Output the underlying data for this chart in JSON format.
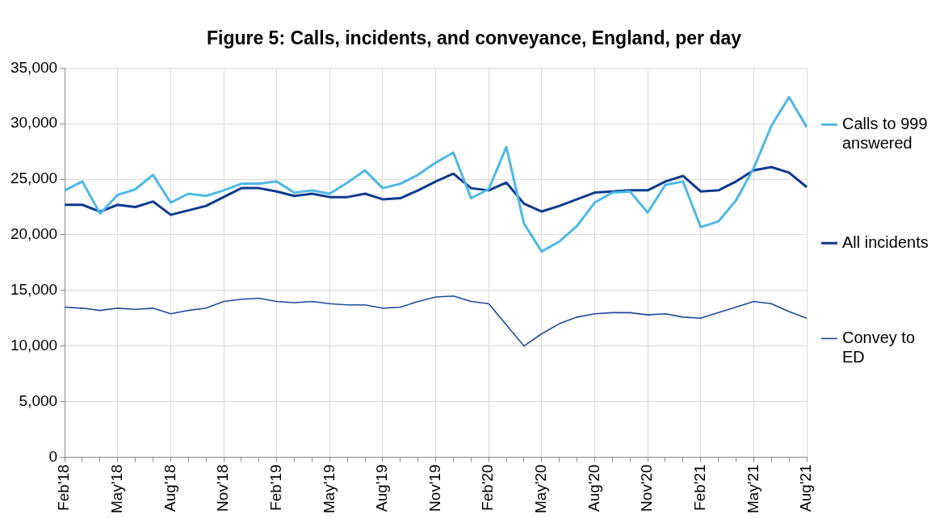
{
  "chart_data": {
    "type": "line",
    "title": "Figure 5: Calls, incidents, and conveyance, England, per day",
    "categories": [
      "Feb'18",
      null,
      null,
      "May'18",
      null,
      null,
      "Aug'18",
      null,
      null,
      "Nov'18",
      null,
      null,
      "Feb'19",
      null,
      null,
      "May'19",
      null,
      null,
      "Aug'19",
      null,
      null,
      "Nov'19",
      null,
      null,
      "Feb'20",
      null,
      null,
      "May'20",
      null,
      null,
      "Aug'20",
      null,
      null,
      "Nov'20",
      null,
      null,
      "Feb'21",
      null,
      null,
      "May'21",
      null,
      null,
      "Aug'21"
    ],
    "series": [
      {
        "name": "Calls to 999 answered",
        "color": "#4db8e8",
        "values": [
          24000,
          24800,
          21900,
          23600,
          24100,
          25400,
          22900,
          23700,
          23500,
          24000,
          24600,
          24600,
          24800,
          23800,
          24000,
          23700,
          24700,
          25800,
          24200,
          24600,
          25400,
          26500,
          27400,
          23300,
          24100,
          27900,
          21000,
          18500,
          19400,
          20800,
          22900,
          23800,
          23900,
          22000,
          24500,
          24800,
          20700,
          21200,
          23100,
          26000,
          29800,
          32400,
          29700
        ]
      },
      {
        "name": "All incidents",
        "color": "#0d3a8e",
        "values": [
          22700,
          22700,
          22100,
          22700,
          22500,
          23000,
          21800,
          22200,
          22600,
          23400,
          24200,
          24200,
          23900,
          23500,
          23700,
          23400,
          23400,
          23700,
          23200,
          23300,
          24000,
          24800,
          25500,
          24200,
          24000,
          24700,
          22800,
          22100,
          22600,
          23200,
          23800,
          23900,
          24000,
          24000,
          24800,
          25300,
          23900,
          24000,
          24800,
          25800,
          26100,
          25600,
          24300
        ]
      },
      {
        "name": "Convey to ED",
        "color": "#1f4a9c",
        "values": [
          13500,
          13400,
          13200,
          13400,
          13300,
          13400,
          12900,
          13200,
          13400,
          14000,
          14200,
          14300,
          14000,
          13900,
          14000,
          13800,
          13700,
          13700,
          13400,
          13500,
          14000,
          14400,
          14500,
          14000,
          13800,
          11900,
          10000,
          11100,
          12000,
          12600,
          12900,
          13000,
          13000,
          12800,
          12900,
          12600,
          12500,
          13000,
          13500,
          14000,
          13800,
          13100,
          12500
        ]
      }
    ],
    "ylim": [
      0,
      35000
    ],
    "yticks": [
      0,
      {
        "value": 5000,
        "label": "5,000"
      },
      {
        "value": 10000,
        "label": "10,000"
      },
      {
        "value": 15000,
        "label": "15,000"
      },
      {
        "value": 20000,
        "label": "20,000"
      },
      {
        "value": 25000,
        "label": "25,000"
      },
      {
        "value": 30000,
        "label": "30,000"
      },
      {
        "value": 35000,
        "label": "35,000"
      }
    ],
    "grid": true,
    "legend": "right",
    "marker": "none",
    "line_style": "solid"
  }
}
